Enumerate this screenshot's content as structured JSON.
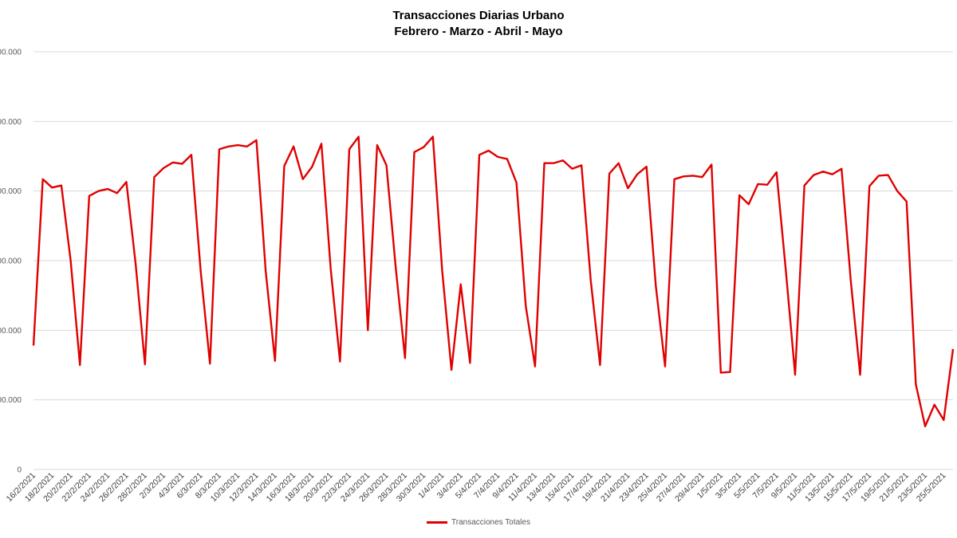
{
  "chart_data": {
    "type": "line",
    "title": "Transacciones Diarias Urbano",
    "subtitle": "Febrero - Marzo - Abril - Mayo",
    "xlabel": "",
    "ylabel": "",
    "ylim": [
      0,
      600000
    ],
    "y_ticks": [
      {
        "value": 0,
        "label": "0"
      },
      {
        "value": 100000,
        "label": "00.000"
      },
      {
        "value": 200000,
        "label": "00.000"
      },
      {
        "value": 300000,
        "label": "00.000"
      },
      {
        "value": 400000,
        "label": "00.000"
      },
      {
        "value": 500000,
        "label": "00.000"
      },
      {
        "value": 600000,
        "label": "00.000"
      }
    ],
    "grid": true,
    "legend_position": "bottom",
    "x_tick_labels": [
      "16/2/2021",
      "18/2/2021",
      "20/2/2021",
      "22/2/2021",
      "24/2/2021",
      "26/2/2021",
      "28/2/2021",
      "2/3/2021",
      "4/3/2021",
      "6/3/2021",
      "8/3/2021",
      "10/3/2021",
      "12/3/2021",
      "14/3/2021",
      "16/3/2021",
      "18/3/2021",
      "20/3/2021",
      "22/3/2021",
      "24/3/2021",
      "26/3/2021",
      "28/3/2021",
      "30/3/2021",
      "1/4/2021",
      "3/4/2021",
      "5/4/2021",
      "7/4/2021",
      "9/4/2021",
      "11/4/2021",
      "13/4/2021",
      "15/4/2021",
      "17/4/2021",
      "19/4/2021",
      "21/4/2021",
      "23/4/2021",
      "25/4/2021",
      "27/4/2021",
      "29/4/2021",
      "1/5/2021",
      "3/5/2021",
      "5/5/2021",
      "7/5/2021",
      "9/5/2021",
      "11/5/2021",
      "13/5/2021",
      "15/5/2021",
      "17/5/2021",
      "19/5/2021",
      "21/5/2021",
      "23/5/2021",
      "25/5/2021"
    ],
    "series": [
      {
        "name": "Transacciones Totales",
        "color": "#e00000",
        "values": [
          178000,
          417000,
          405000,
          408000,
          300000,
          150000,
          393000,
          400000,
          403000,
          397000,
          413000,
          295000,
          151000,
          420000,
          433000,
          441000,
          439000,
          452000,
          285000,
          152000,
          460000,
          464000,
          466000,
          464000,
          473000,
          285000,
          156000,
          436000,
          464000,
          417000,
          435000,
          468000,
          288000,
          155000,
          460000,
          478000,
          200000,
          466000,
          437000,
          290000,
          160000,
          456000,
          463000,
          478000,
          286000,
          143000,
          266000,
          153000,
          452000,
          458000,
          449000,
          446000,
          412000,
          235000,
          148000,
          440000,
          440000,
          444000,
          432000,
          437000,
          271000,
          150000,
          425000,
          440000,
          404000,
          424000,
          435000,
          264000,
          148000,
          417000,
          421000,
          422000,
          420000,
          438000,
          139000,
          140000,
          394000,
          381000,
          410000,
          409000,
          427000,
          286000,
          136000,
          408000,
          423000,
          428000,
          424000,
          432000,
          270000,
          136000,
          407000,
          422000,
          423000,
          400000,
          385000,
          122000,
          62000,
          93000,
          71000,
          173000
        ]
      }
    ]
  }
}
